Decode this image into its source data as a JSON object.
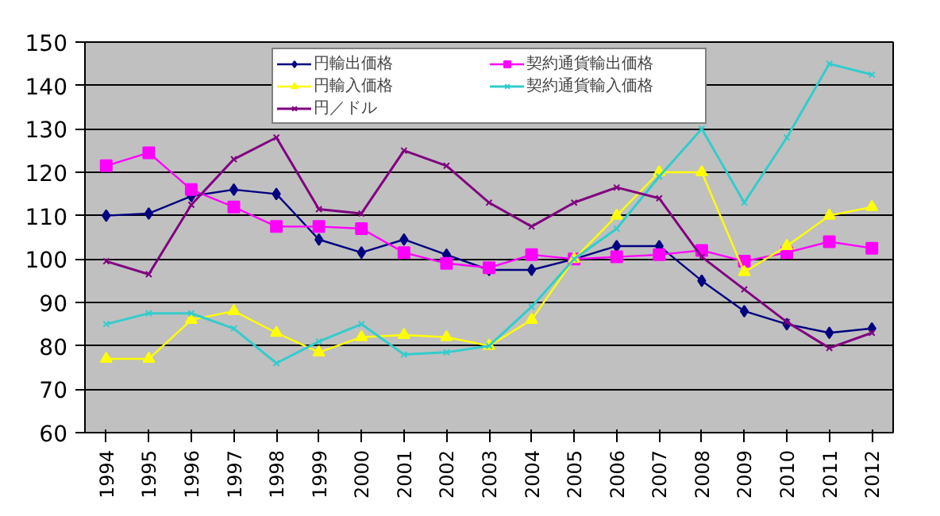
{
  "chart_data": {
    "type": "line",
    "categories": [
      "1994",
      "1995",
      "1996",
      "1997",
      "1998",
      "1999",
      "2000",
      "2001",
      "2002",
      "2003",
      "2004",
      "2005",
      "2006",
      "2007",
      "2008",
      "2009",
      "2010",
      "2011",
      "2012"
    ],
    "ylim": [
      60,
      150
    ],
    "yticks": [
      60,
      70,
      80,
      90,
      100,
      110,
      120,
      130,
      140,
      150
    ],
    "grid": "y",
    "legend": "top",
    "series": [
      {
        "name": "円輸出価格",
        "color": "#000080",
        "marker": "diamond",
        "values": [
          110,
          110.5,
          114.5,
          116,
          115,
          104.5,
          101.5,
          104.5,
          101,
          97.5,
          97.5,
          100,
          103,
          103,
          95,
          88,
          85,
          83,
          84
        ]
      },
      {
        "name": "契約通貨輸出価格",
        "color": "#ff00ff",
        "marker": "square",
        "values": [
          121.5,
          124.5,
          116,
          112,
          107.5,
          107.5,
          107,
          101.5,
          99,
          98,
          101,
          100,
          100.5,
          101,
          102,
          99.5,
          101.5,
          104,
          102.5
        ]
      },
      {
        "name": "円輸入価格",
        "color": "#ffff00",
        "marker": "triangle",
        "values": [
          77,
          77,
          86,
          88,
          83,
          78.5,
          82,
          82.5,
          82,
          80,
          86,
          100,
          110,
          120,
          120,
          97,
          103,
          110,
          112
        ]
      },
      {
        "name": "契約通貨輸入価格",
        "color": "#33cccc",
        "marker": "cross",
        "values": [
          85,
          87.5,
          87.5,
          84,
          76,
          81,
          85,
          78,
          78.5,
          80,
          89,
          100,
          107,
          119,
          130,
          113,
          128,
          145,
          142.5
        ]
      },
      {
        "name": "円／ドル",
        "color": "#800080",
        "marker": "cross",
        "values": [
          99.5,
          96.5,
          112.5,
          123,
          128,
          111.5,
          110.5,
          125,
          121.5,
          113,
          107.5,
          113,
          116.5,
          114,
          100.5,
          93,
          85.5,
          79.5,
          83
        ]
      }
    ]
  }
}
